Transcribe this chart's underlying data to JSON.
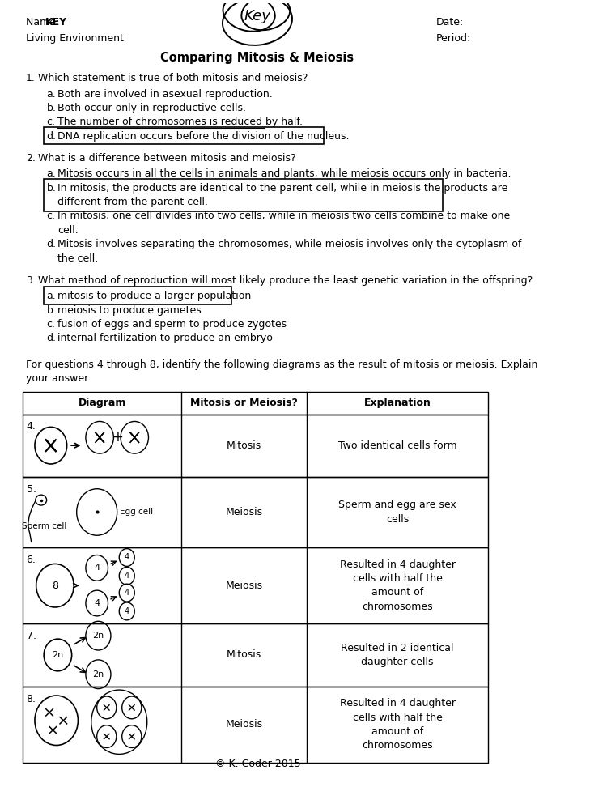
{
  "bg_color": "#ffffff",
  "page_width": 7.29,
  "page_height": 9.72,
  "header": {
    "name_label": "Name: ",
    "name_value": "KEY",
    "subject": "Living Environment",
    "date_label": "Date:",
    "period_label": "Period:",
    "title": "Comparing Mitosis & Meiosis"
  },
  "questions": [
    {
      "num": "1.",
      "text": "Which statement is true of both mitosis and meiosis?",
      "choices": [
        {
          "letter": "a.",
          "text": "Both are involved in asexual reproduction.",
          "boxed": false,
          "underline": false
        },
        {
          "letter": "b.",
          "text": "Both occur only in reproductive cells.",
          "boxed": false,
          "underline": false
        },
        {
          "letter": "c.",
          "text": "The number of chromosomes is reduced by half.",
          "boxed": false,
          "underline": true
        },
        {
          "letter": "d.",
          "text": "DNA replication occurs before the division of the nucleus.",
          "boxed": true,
          "underline": false
        }
      ]
    },
    {
      "num": "2.",
      "text": "What is a difference between mitosis and meiosis?",
      "choices": [
        {
          "letter": "a.",
          "text": "Mitosis occurs in all the cells in animals and plants, while meiosis occurs only in bacteria.",
          "boxed": false,
          "underline": false
        },
        {
          "letter": "b.",
          "text": "In mitosis, the products are identical to the parent cell, while in meiosis the products are\ndifferent from the parent cell.",
          "boxed": true,
          "underline": false
        },
        {
          "letter": "c.",
          "text": "In mitosis, one cell divides into two cells, while in meiosis two cells combine to make one\ncell.",
          "boxed": false,
          "underline": false
        },
        {
          "letter": "d.",
          "text": "Mitosis involves separating the chromosomes, while meiosis involves only the cytoplasm of\nthe cell.",
          "boxed": false,
          "underline": false
        }
      ]
    },
    {
      "num": "3.",
      "text": "What method of reproduction will most likely produce the least genetic variation in the offspring?",
      "choices": [
        {
          "letter": "a.",
          "text": "mitosis to produce a larger population",
          "boxed": true,
          "underline": false
        },
        {
          "letter": "b.",
          "text": "meiosis to produce gametes",
          "boxed": false,
          "underline": false
        },
        {
          "letter": "c.",
          "text": "fusion of eggs and sperm to produce zygotes",
          "boxed": false,
          "underline": false
        },
        {
          "letter": "d.",
          "text": "internal fertilization to produce an embryo",
          "boxed": false,
          "underline": false
        }
      ]
    }
  ],
  "table_intro": "For questions 4 through 8, identify the following diagrams as the result of mitosis or meiosis. Explain\nyour answer.",
  "table_headers": [
    "Diagram",
    "Mitosis or Meiosis?",
    "Explanation"
  ],
  "table_rows": [
    {
      "num": "4.",
      "answer": "Mitosis",
      "explanation": "Two identical cells form"
    },
    {
      "num": "5.",
      "answer": "Meiosis",
      "explanation": "Sperm and egg are sex\ncells"
    },
    {
      "num": "6.",
      "answer": "Meiosis",
      "explanation": "Resulted in 4 daughter\ncells with half the\namount of\nchromosomes"
    },
    {
      "num": "7.",
      "answer": "Mitosis",
      "explanation": "Resulted in 2 identical\ndaughter cells"
    },
    {
      "num": "8.",
      "answer": "Meiosis",
      "explanation": "Resulted in 4 daughter\ncells with half the\namount of\nchromosomes"
    }
  ],
  "footer": "© K. Coder 2015"
}
